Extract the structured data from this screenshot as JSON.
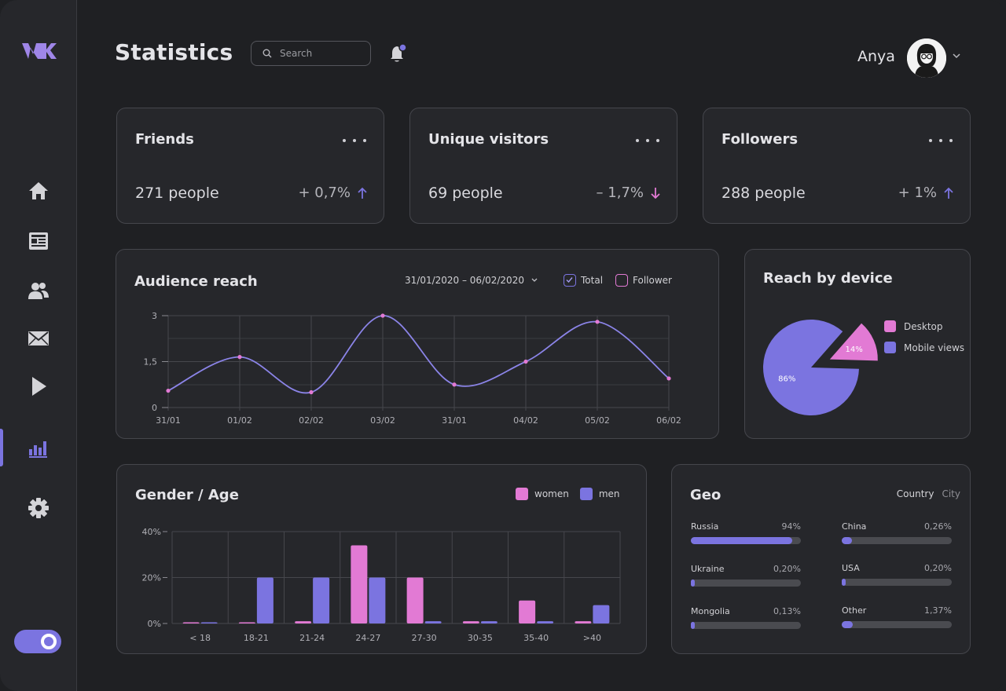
{
  "header": {
    "title": "Statistics",
    "search_placeholder": "Search",
    "user_name": "Anya"
  },
  "colors": {
    "accent": "#7b74e0",
    "pink": "#e27ad4",
    "down": "#e27ad4",
    "up": "#7b74e0"
  },
  "sidebar": {
    "items": [
      {
        "icon": "home-icon"
      },
      {
        "icon": "news-icon"
      },
      {
        "icon": "friends-icon"
      },
      {
        "icon": "mail-icon"
      },
      {
        "icon": "play-icon"
      },
      {
        "icon": "statistics-icon",
        "active": true
      },
      {
        "icon": "gear-icon"
      }
    ]
  },
  "stats": [
    {
      "title": "Friends",
      "value": "271 people",
      "change": "+ 0,7%",
      "direction": "up"
    },
    {
      "title": "Unique visitors",
      "value": "69 people",
      "change": "– 1,7%",
      "direction": "down"
    },
    {
      "title": "Followers",
      "value": "288 people",
      "change": "+ 1%",
      "direction": "up"
    }
  ],
  "audience": {
    "title": "Audience reach",
    "date_range": "31/01/2020 – 06/02/2020",
    "legend_total": "Total",
    "legend_follower": "Follower"
  },
  "device": {
    "title": "Reach by device",
    "legend_desktop": "Desktop",
    "legend_mobile": "Mobile views",
    "label_desktop": "14%",
    "label_mobile": "86%"
  },
  "gender": {
    "title": "Gender / Age",
    "legend_women": "women",
    "legend_men": "men"
  },
  "geo": {
    "title": "Geo",
    "tab_country": "Country",
    "tab_city": "City",
    "rows": [
      {
        "label": "Russia",
        "value": "94%",
        "fill": 0.92
      },
      {
        "label": "China",
        "value": "0,26%",
        "fill": 0.09
      },
      {
        "label": "Ukraine",
        "value": "0,20%",
        "fill": 0.03
      },
      {
        "label": "USA",
        "value": "0,20%",
        "fill": 0.03
      },
      {
        "label": "Mongolia",
        "value": "0,13%",
        "fill": 0.03
      },
      {
        "label": "Other",
        "value": "1,37%",
        "fill": 0.1
      }
    ]
  },
  "chart_data": [
    {
      "type": "line",
      "x": [
        "31/01",
        "01/02",
        "02/02",
        "03/02",
        "31/01",
        "04/02",
        "05/02",
        "06/02"
      ],
      "series": [
        {
          "name": "Total",
          "values": [
            0.55,
            1.65,
            0.5,
            3.0,
            0.75,
            1.5,
            2.8,
            0.95
          ]
        }
      ],
      "ylim": [
        0,
        3
      ],
      "yticks": [
        "0",
        "1,5",
        "3"
      ],
      "grid": true
    },
    {
      "type": "pie",
      "categories": [
        "Desktop",
        "Mobile views"
      ],
      "values": [
        14,
        86
      ],
      "labels": [
        "14%",
        "86%"
      ]
    },
    {
      "type": "bar",
      "categories": [
        "< 18",
        "18-21",
        "21-24",
        "24-27",
        "27-30",
        "30-35",
        "35-40",
        ">40"
      ],
      "series": [
        {
          "name": "women",
          "values": [
            0.5,
            0.5,
            1,
            34,
            20,
            1,
            10,
            1
          ]
        },
        {
          "name": "men",
          "values": [
            0.5,
            20,
            20,
            20,
            1,
            1,
            1,
            8
          ]
        }
      ],
      "ylim": [
        0,
        40
      ],
      "yticks": [
        "0%",
        "20%",
        "40%"
      ],
      "grid": true
    }
  ]
}
